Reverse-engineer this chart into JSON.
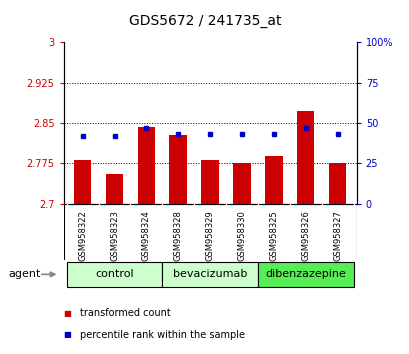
{
  "title": "GDS5672 / 241735_at",
  "samples": [
    "GSM958322",
    "GSM958323",
    "GSM958324",
    "GSM958328",
    "GSM958329",
    "GSM958330",
    "GSM958325",
    "GSM958326",
    "GSM958327"
  ],
  "transformed_count": [
    2.782,
    2.755,
    2.843,
    2.828,
    2.782,
    2.775,
    2.788,
    2.873,
    2.775
  ],
  "percentile_rank": [
    42,
    42,
    47,
    43,
    43,
    43,
    43,
    47,
    43
  ],
  "ylim_left": [
    2.7,
    3.0
  ],
  "ylim_right": [
    0,
    100
  ],
  "yticks_left": [
    2.7,
    2.775,
    2.85,
    2.925,
    3.0
  ],
  "yticks_right": [
    0,
    25,
    50,
    75,
    100
  ],
  "ytick_labels_left": [
    "2.7",
    "2.775",
    "2.85",
    "2.925",
    "3"
  ],
  "ytick_labels_right": [
    "0",
    "25",
    "50",
    "75",
    "100%"
  ],
  "groups": [
    {
      "name": "control",
      "indices": [
        0,
        1,
        2
      ],
      "color": "#ccffcc"
    },
    {
      "name": "bevacizumab",
      "indices": [
        3,
        4,
        5
      ],
      "color": "#ccffcc"
    },
    {
      "name": "dibenzazepine",
      "indices": [
        6,
        7,
        8
      ],
      "color": "#55ee55"
    }
  ],
  "bar_color": "#cc0000",
  "dot_color": "#0000cc",
  "bar_bottom": 2.7,
  "bar_width": 0.55,
  "background_color": "#ffffff",
  "plot_bg_color": "#ffffff",
  "label_area_color": "#cccccc",
  "agent_label": "agent",
  "legend_items": [
    "transformed count",
    "percentile rank within the sample"
  ],
  "title_fontsize": 10,
  "tick_fontsize": 7,
  "sample_fontsize": 6,
  "group_fontsize": 8
}
